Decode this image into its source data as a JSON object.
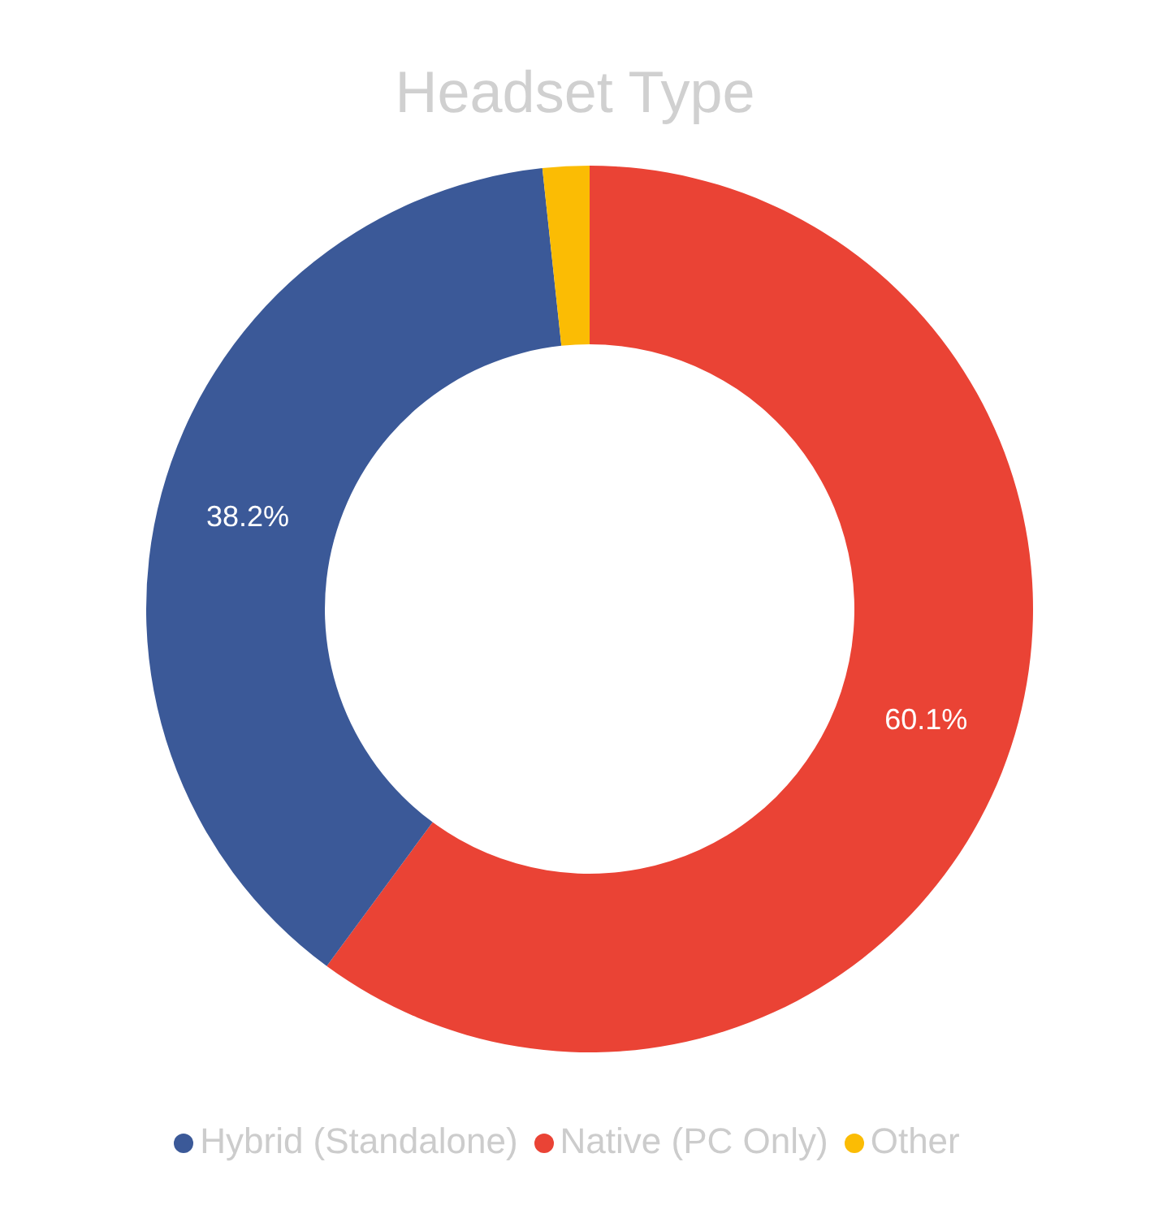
{
  "chart_data": {
    "type": "donut",
    "title": "Headset Type",
    "categories": [
      "Native (PC Only)",
      "Hybrid (Standalone)",
      "Other"
    ],
    "values": [
      60.1,
      38.2,
      1.7
    ],
    "colors": [
      "#ea4335",
      "#3b5998",
      "#fbbc04"
    ],
    "value_labels": [
      "60.1%",
      "38.2%",
      null
    ],
    "legend": "bottom"
  }
}
